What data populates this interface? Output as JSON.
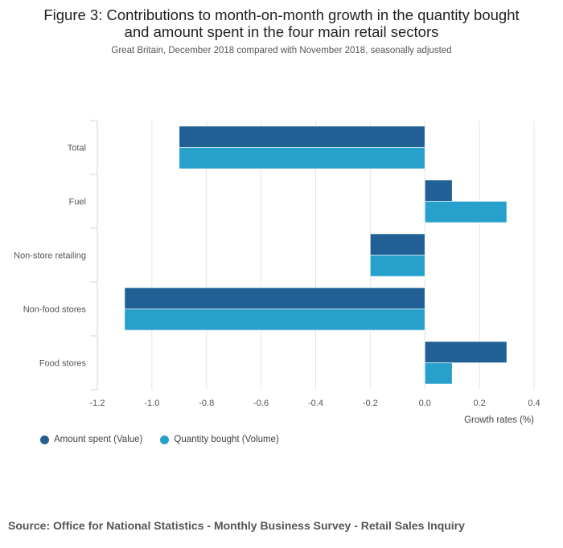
{
  "figure": {
    "title_line1": "Figure 3: Contributions to month-on-month growth in the quantity bought",
    "title_line2": "and amount spent in the four main retail sectors",
    "subtitle": "Great Britain, December 2018 compared with November 2018, seasonally adjusted",
    "source": "Source: Office for National Statistics - Monthly Business Survey - Retail Sales Inquiry"
  },
  "colors": {
    "value": "#206095",
    "volume": "#27a0cc"
  },
  "chart_data": {
    "type": "bar",
    "orientation": "horizontal",
    "categories": [
      "Total",
      "Fuel",
      "Non-store retailing",
      "Non-food stores",
      "Food stores"
    ],
    "series": [
      {
        "name": "Amount spent (Value)",
        "values": [
          -0.9,
          0.1,
          -0.2,
          -1.1,
          0.3
        ]
      },
      {
        "name": "Quantity bought (Volume)",
        "values": [
          -0.9,
          0.3,
          -0.2,
          -1.1,
          0.1
        ]
      }
    ],
    "xlim": [
      -1.2,
      0.4
    ],
    "xticks": [
      -1.2,
      -1.0,
      -0.8,
      -0.6,
      -0.4,
      -0.2,
      0.0,
      0.2,
      0.4
    ],
    "xtick_labels": [
      "-1.2",
      "-1.0",
      "-0.8",
      "-0.6",
      "-0.4",
      "-0.2",
      "0.0",
      "0.2",
      "0.4"
    ],
    "xlabel": "Growth rates (%)",
    "ylabel": "",
    "grid": true,
    "legend_position": "bottom-left"
  }
}
